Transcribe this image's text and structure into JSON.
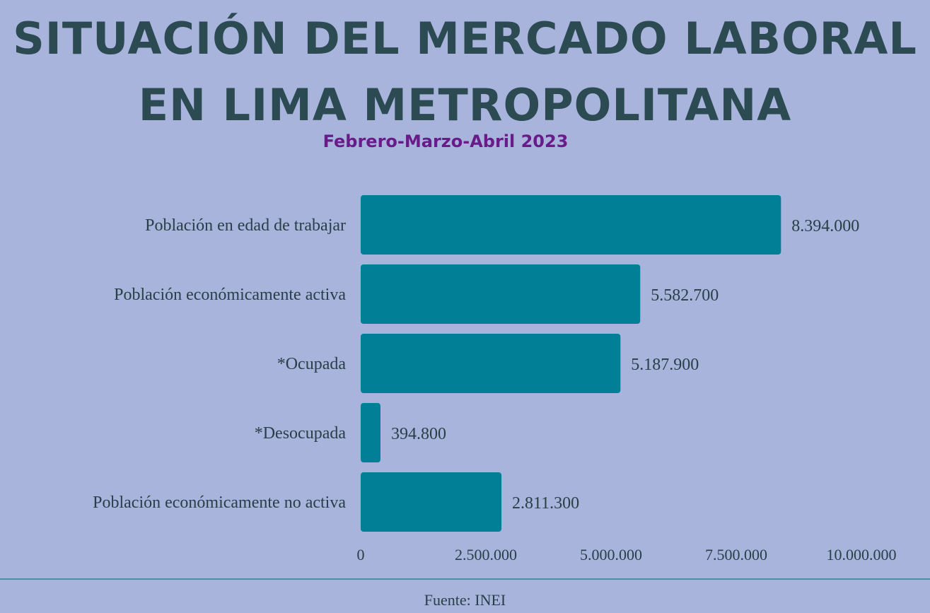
{
  "title_line1": "SITUACIÓN DEL MERCADO LABORAL",
  "title_line2": "EN LIMA METROPOLITANA",
  "subtitle": "Febrero-Marzo-Abril 2023",
  "source": "Fuente: INEI",
  "colors": {
    "bar": "#007f96",
    "background": "#a8b4dc",
    "title": "#2b4a52",
    "subtitle": "#6a1b8a",
    "text": "#2b3e47"
  },
  "chart_data": {
    "type": "bar",
    "orientation": "horizontal",
    "categories": [
      "Población en edad de trabajar",
      "Población económicamente activa",
      "*Ocupada",
      "*Desocupada",
      "Población económicamente no activa"
    ],
    "values": [
      8394000,
      5582700,
      5187900,
      394800,
      2811300
    ],
    "value_labels": [
      "8.394.000",
      "5.582.700",
      "5.187.900",
      "394.800",
      "2.811.300"
    ],
    "x_ticks": [
      0,
      2500000,
      5000000,
      7500000,
      10000000
    ],
    "x_tick_labels": [
      "0",
      "2.500.000",
      "5.000.000",
      "7.500.000",
      "10.000.000"
    ],
    "xlim": [
      0,
      10000000
    ],
    "grid": false,
    "legend": false
  }
}
